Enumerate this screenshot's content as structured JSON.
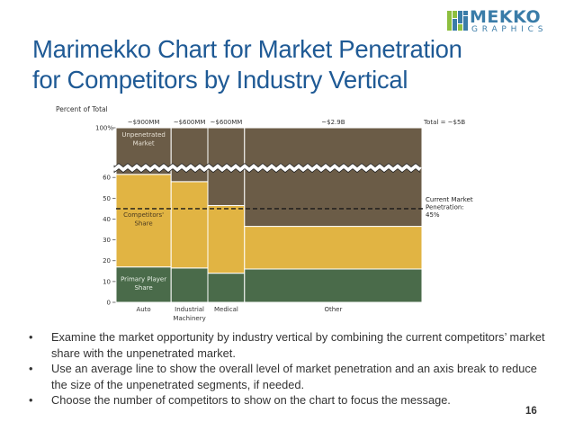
{
  "slide": {
    "title_lines": [
      "Marimekko Chart for Market Penetration",
      "for Competitors by Industry Vertical"
    ],
    "bullets": [
      "Examine the market opportunity by industry vertical by combining the current competitors’ market share with the unpenetrated market.",
      "Use an average line to show the overall level of market penetration and an axis break to reduce the size of the unpenetrated segments, if needed.",
      "Choose the number of competitors to show on the chart to focus the message."
    ],
    "page_number": "16"
  },
  "logo": {
    "word1": "MEKKO",
    "word2": "GRAPHICS",
    "color": "#3a7ca8",
    "accent": "#8dbf3f"
  },
  "chart_data": {
    "type": "marimekko",
    "ylabel": "Percent of Total",
    "y_ticks": [
      "0",
      "10",
      "20",
      "30",
      "40",
      "50",
      "60"
    ],
    "y_top_label": "100%",
    "axis_break": true,
    "total_label": "Total = ~$5B",
    "categories": [
      "Auto",
      "Industrial Machinery",
      "Medical",
      "Other"
    ],
    "column_size_labels": [
      "~$900MM",
      "~$600MM",
      "~$600MM",
      "~$2.9B"
    ],
    "column_widths": [
      0.9,
      0.6,
      0.6,
      2.9
    ],
    "series": [
      {
        "name": "Primary Player Share",
        "color": "#4a6b4a",
        "values": [
          17,
          16.5,
          14,
          16
        ]
      },
      {
        "name": "Competitors' Share",
        "color": "#e1b443",
        "values": [
          44.5,
          41.5,
          32.5,
          20.5
        ]
      },
      {
        "name": "Unpenetrated Market",
        "color": "#6b5c47",
        "values": [
          38.5,
          42,
          53.5,
          63.5
        ]
      }
    ],
    "average_line": {
      "value": 45,
      "label_lines": [
        "Current Market",
        "Penetration:",
        "45%"
      ]
    },
    "segment_labels": {
      "unpenetrated": [
        "Unpenetrated",
        "Market"
      ],
      "competitors": [
        "Competitors'",
        "Share"
      ],
      "primary": [
        "Primary Player",
        "Share"
      ]
    }
  }
}
